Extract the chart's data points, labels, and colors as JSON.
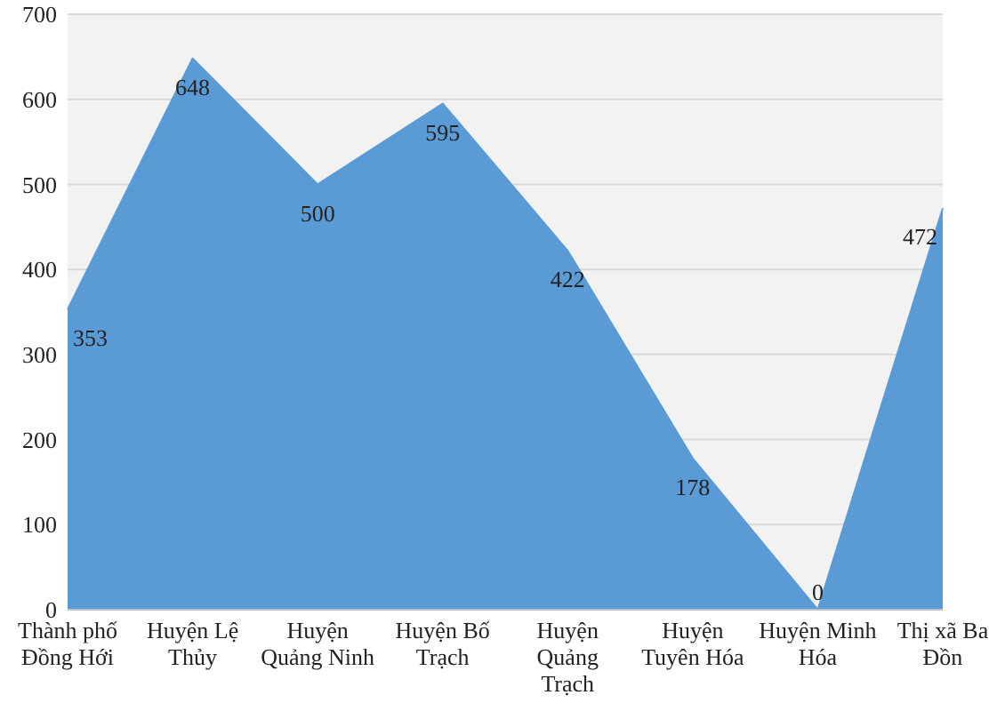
{
  "chart_data": {
    "type": "area",
    "categories": [
      "Thành phố Đồng Hới",
      "Huyện Lệ Thủy",
      "Huyện Quảng Ninh",
      "Huyện Bố Trạch",
      "Huyện Quảng Trạch",
      "Huyện Tuyên Hóa",
      "Huyện Minh Hóa",
      "Thị xã Ba Đồn"
    ],
    "values": [
      353,
      648,
      500,
      595,
      422,
      178,
      0,
      472
    ],
    "color": "#5b9bd5",
    "ylim": [
      0,
      700
    ],
    "yticks": [
      0,
      100,
      200,
      300,
      400,
      500,
      600,
      700
    ],
    "value_labels": [
      "353",
      "648",
      "500",
      "595",
      "422",
      "178",
      "0",
      "472"
    ],
    "grid": "y"
  }
}
